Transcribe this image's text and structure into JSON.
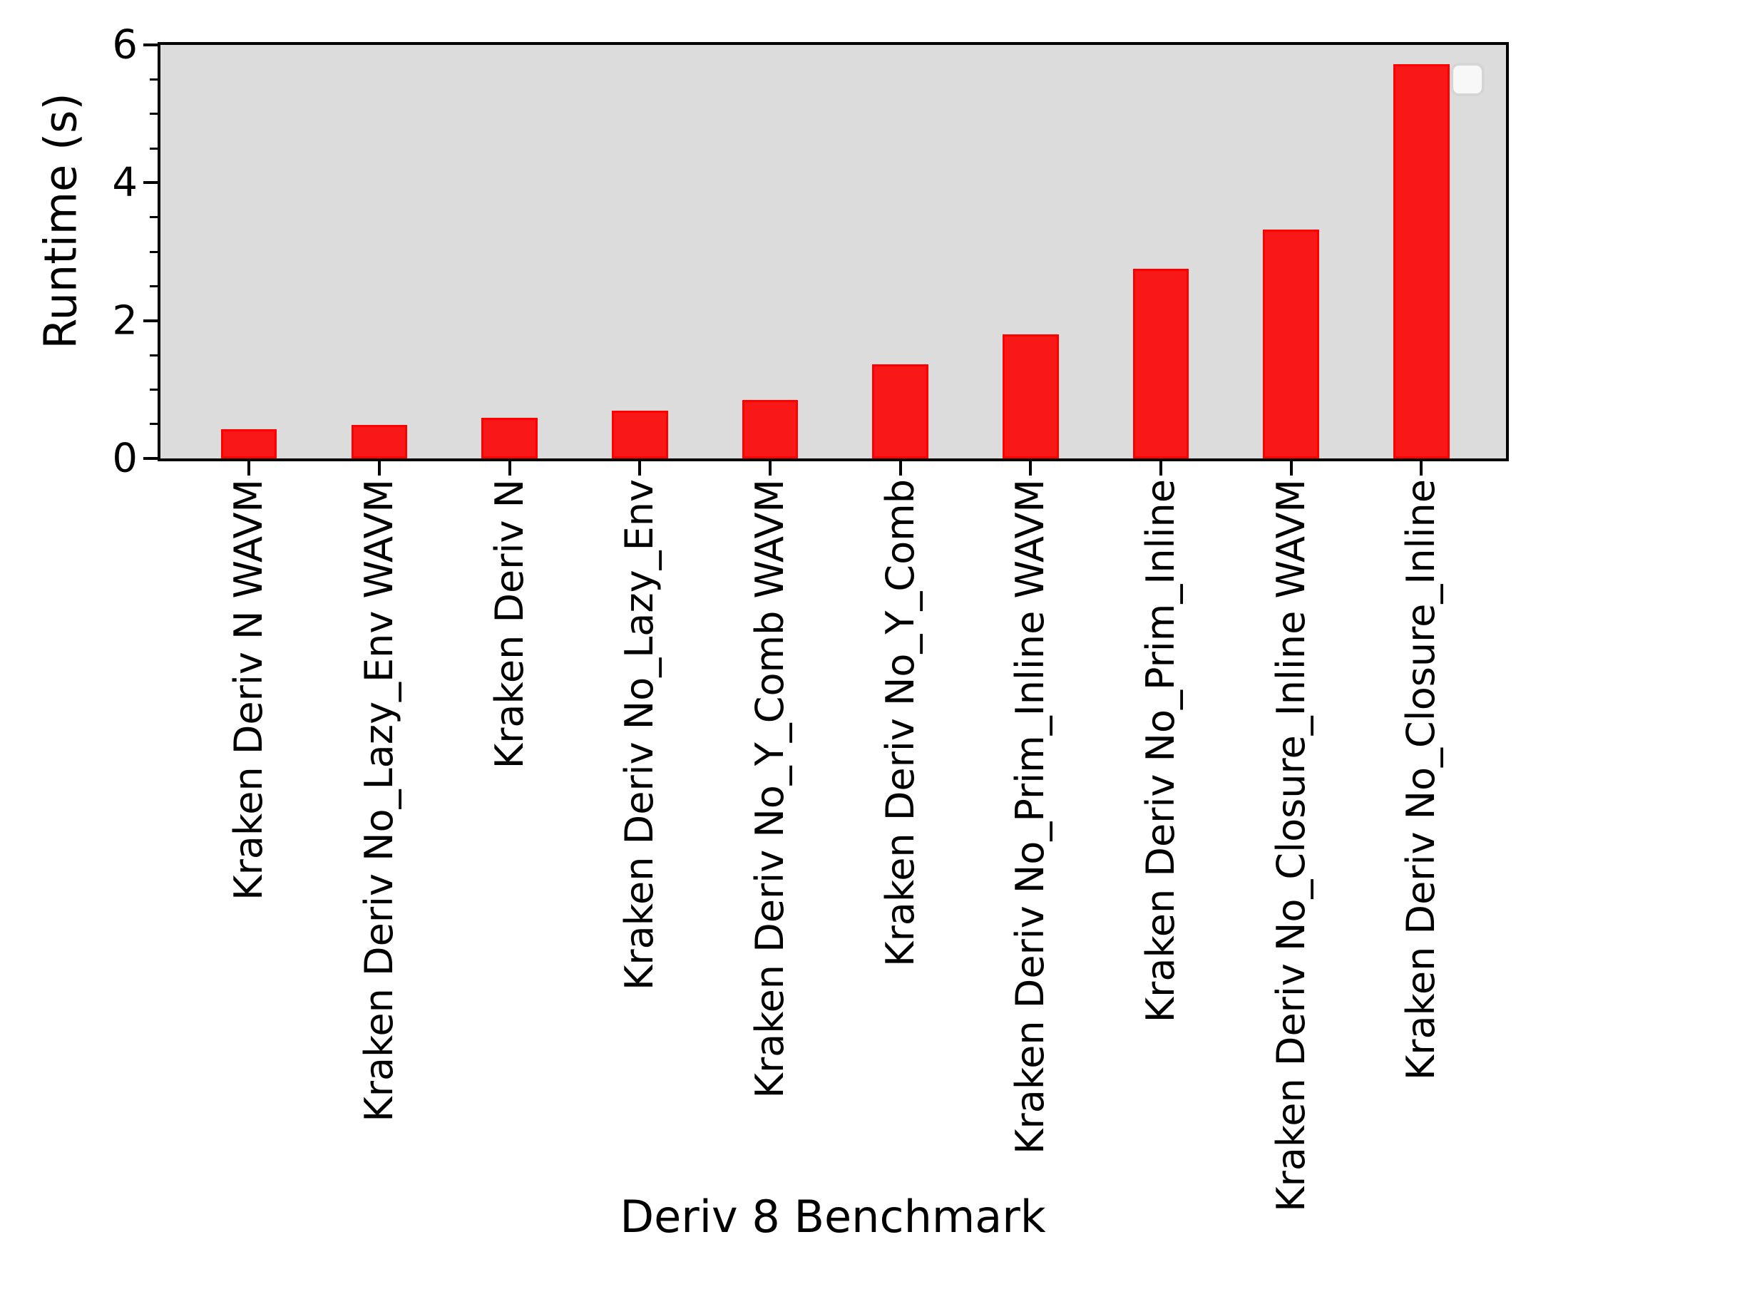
{
  "chart_data": {
    "type": "bar",
    "title": "",
    "xlabel": "Deriv 8 Benchmark",
    "ylabel": "Runtime (s)",
    "categories": [
      "Kraken Deriv N WAVM",
      "Kraken Deriv No_Lazy_Env WAVM",
      "Kraken Deriv N",
      "Kraken Deriv No_Lazy_Env",
      "Kraken Deriv No_Y_Comb WAVM",
      "Kraken Deriv No_Y_Comb",
      "Kraken Deriv No_Prim_Inline WAVM",
      "Kraken Deriv No_Prim_Inline",
      "Kraken Deriv No_Closure_Inline WAVM",
      "Kraken Deriv No_Closure_Inline"
    ],
    "values": [
      0.42,
      0.49,
      0.59,
      0.69,
      0.85,
      1.37,
      1.8,
      2.75,
      3.32,
      5.72
    ],
    "ylim": [
      0,
      6
    ],
    "yticks": [
      0,
      2,
      4,
      6
    ],
    "y_minor_tick_step": 0.5,
    "x_tick_label_rotation_deg": 90,
    "grid": "off",
    "legend": {
      "position": "upper-right",
      "entries": []
    },
    "colors": {
      "bar_fill": "#f81818",
      "bar_edge": "#ff0000",
      "plot_background": "#dcdcdc",
      "figure_background": "#ffffff",
      "axis": "#000000"
    }
  }
}
